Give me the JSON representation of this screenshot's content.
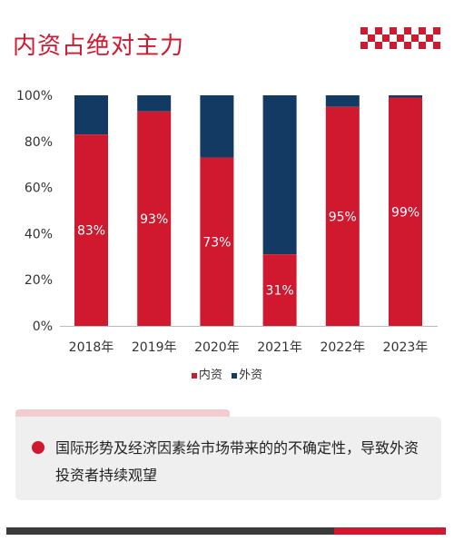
{
  "page_title": "内资占绝对主力",
  "colors": {
    "brand_red": "#d0182f",
    "navy": "#123a63",
    "note_bg": "#efefef"
  },
  "chart_data": {
    "type": "bar",
    "stacked": true,
    "categories": [
      "2018年",
      "2019年",
      "2020年",
      "2021年",
      "2022年",
      "2023年"
    ],
    "series": [
      {
        "name": "内资",
        "values": [
          83,
          93,
          73,
          31,
          95,
          99
        ],
        "labels": [
          "83%",
          "93%",
          "73%",
          "31%",
          "95%",
          "99%"
        ]
      },
      {
        "name": "外资",
        "values": [
          17,
          7,
          27,
          69,
          5,
          1
        ]
      }
    ],
    "yticks": [
      "0%",
      "20%",
      "40%",
      "60%",
      "80%",
      "100%"
    ],
    "ylim": [
      0,
      100
    ],
    "grid": false,
    "legend_position": "bottom"
  },
  "legend": {
    "domestic": "内资",
    "foreign": "外资"
  },
  "note": {
    "text": "国际形势及经济因素给市场带来的的不确定性，导致外资投资者持续观望"
  }
}
